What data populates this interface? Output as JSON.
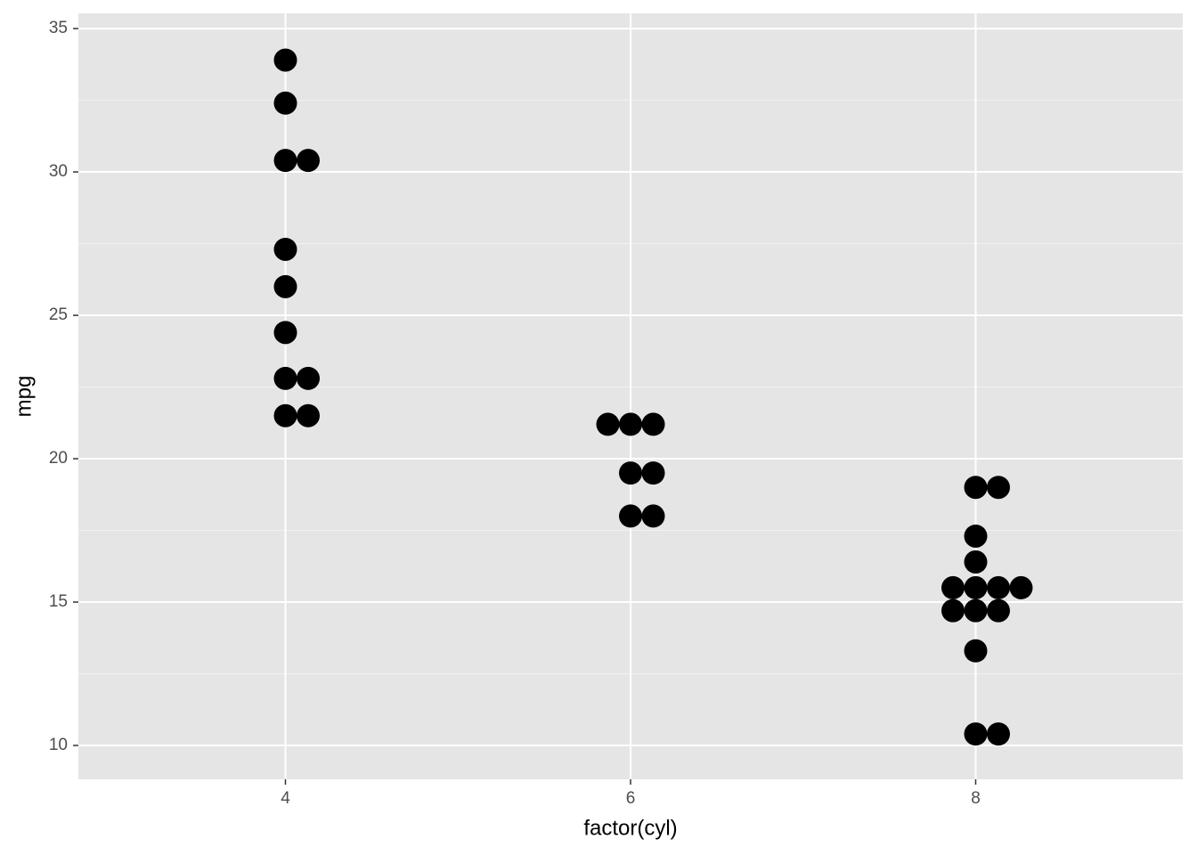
{
  "chart_data": {
    "type": "dotplot",
    "x_label": "factor(cyl)",
    "y_label": "mpg",
    "categories": [
      "4",
      "6",
      "8"
    ],
    "values": [
      [
        33.9,
        32.4,
        30.4,
        30.4,
        27.3,
        26.0,
        24.4,
        22.8,
        22.8,
        21.5,
        21.5
      ],
      [
        21.2,
        21.2,
        21.2,
        19.5,
        19.5,
        18.0,
        18.0
      ],
      [
        19.0,
        19.0,
        17.3,
        16.4,
        15.5,
        15.5,
        15.5,
        15.5,
        14.7,
        14.7,
        14.7,
        13.3,
        10.4,
        10.4
      ]
    ],
    "color": "#000000",
    "ylim": [
      8.82,
      35.53
    ],
    "yticks": [
      10,
      15,
      20,
      25,
      30,
      35
    ],
    "grid": true
  }
}
